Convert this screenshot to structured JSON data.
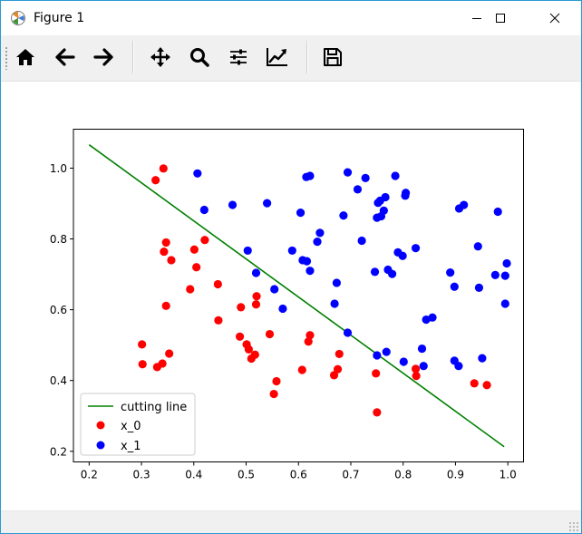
{
  "window": {
    "title": "Figure 1"
  },
  "toolbar": {
    "buttons": [
      {
        "name": "home-icon"
      },
      {
        "name": "back-arrow-icon"
      },
      {
        "name": "forward-arrow-icon"
      },
      {
        "name": "pan-icon"
      },
      {
        "name": "zoom-icon"
      },
      {
        "name": "configure-subplots-icon"
      },
      {
        "name": "edit-axis-icon"
      },
      {
        "name": "save-icon"
      }
    ]
  },
  "colors": {
    "class0": "#ff0000",
    "class1": "#0000ff",
    "line": "#008000"
  },
  "chart_data": {
    "type": "scatter",
    "xlim": [
      0.17,
      1.03
    ],
    "ylim": [
      0.17,
      1.11
    ],
    "xticks": [
      "0.2",
      "0.3",
      "0.4",
      "0.5",
      "0.6",
      "0.7",
      "0.8",
      "0.9",
      "1.0"
    ],
    "yticks": [
      "0.2",
      "0.4",
      "0.6",
      "0.8",
      "1.0"
    ],
    "legend_position": "lower-left",
    "line": {
      "name": "cutting line",
      "x": [
        0.2,
        0.993
      ],
      "y": [
        1.066,
        0.213
      ]
    },
    "series": [
      {
        "name": "x_0",
        "points": [
          [
            0.342,
            0.999
          ],
          [
            0.327,
            0.966
          ],
          [
            0.347,
            0.79
          ],
          [
            0.343,
            0.764
          ],
          [
            0.357,
            0.74
          ],
          [
            0.421,
            0.797
          ],
          [
            0.401,
            0.77
          ],
          [
            0.405,
            0.72
          ],
          [
            0.393,
            0.658
          ],
          [
            0.446,
            0.672
          ],
          [
            0.347,
            0.611
          ],
          [
            0.447,
            0.57
          ],
          [
            0.49,
            0.607
          ],
          [
            0.52,
            0.638
          ],
          [
            0.519,
            0.615
          ],
          [
            0.301,
            0.502
          ],
          [
            0.302,
            0.446
          ],
          [
            0.33,
            0.438
          ],
          [
            0.34,
            0.448
          ],
          [
            0.353,
            0.476
          ],
          [
            0.488,
            0.524
          ],
          [
            0.501,
            0.502
          ],
          [
            0.505,
            0.488
          ],
          [
            0.517,
            0.473
          ],
          [
            0.51,
            0.462
          ],
          [
            0.545,
            0.531
          ],
          [
            0.622,
            0.528
          ],
          [
            0.619,
            0.51
          ],
          [
            0.678,
            0.475
          ],
          [
            0.607,
            0.43
          ],
          [
            0.675,
            0.432
          ],
          [
            0.668,
            0.415
          ],
          [
            0.558,
            0.398
          ],
          [
            0.553,
            0.362
          ],
          [
            0.748,
            0.42
          ],
          [
            0.824,
            0.433
          ],
          [
            0.825,
            0.413
          ],
          [
            0.936,
            0.392
          ],
          [
            0.96,
            0.387
          ],
          [
            0.75,
            0.31
          ]
        ]
      },
      {
        "name": "x_1",
        "points": [
          [
            0.407,
            0.985
          ],
          [
            0.615,
            0.975
          ],
          [
            0.622,
            0.978
          ],
          [
            0.694,
            0.988
          ],
          [
            0.728,
            0.972
          ],
          [
            0.785,
            0.978
          ],
          [
            0.805,
            0.93
          ],
          [
            0.804,
            0.922
          ],
          [
            0.713,
            0.94
          ],
          [
            0.756,
            0.908
          ],
          [
            0.752,
            0.902
          ],
          [
            0.766,
            0.918
          ],
          [
            0.42,
            0.882
          ],
          [
            0.474,
            0.896
          ],
          [
            0.54,
            0.901
          ],
          [
            0.604,
            0.874
          ],
          [
            0.686,
            0.866
          ],
          [
            0.75,
            0.86
          ],
          [
            0.758,
            0.864
          ],
          [
            0.763,
            0.88
          ],
          [
            0.916,
            0.896
          ],
          [
            0.907,
            0.886
          ],
          [
            0.981,
            0.877
          ],
          [
            0.641,
            0.817
          ],
          [
            0.636,
            0.792
          ],
          [
            0.721,
            0.795
          ],
          [
            0.824,
            0.774
          ],
          [
            0.79,
            0.762
          ],
          [
            0.799,
            0.752
          ],
          [
            0.503,
            0.767
          ],
          [
            0.588,
            0.767
          ],
          [
            0.608,
            0.74
          ],
          [
            0.616,
            0.737
          ],
          [
            0.622,
            0.71
          ],
          [
            0.943,
            0.779
          ],
          [
            0.998,
            0.731
          ],
          [
            0.771,
            0.713
          ],
          [
            0.779,
            0.701
          ],
          [
            0.746,
            0.707
          ],
          [
            0.519,
            0.704
          ],
          [
            0.89,
            0.705
          ],
          [
            0.976,
            0.698
          ],
          [
            0.995,
            0.696
          ],
          [
            0.554,
            0.658
          ],
          [
            0.673,
            0.676
          ],
          [
            0.898,
            0.665
          ],
          [
            0.945,
            0.662
          ],
          [
            0.57,
            0.603
          ],
          [
            0.669,
            0.617
          ],
          [
            0.995,
            0.617
          ],
          [
            0.844,
            0.572
          ],
          [
            0.856,
            0.578
          ],
          [
            0.694,
            0.535
          ],
          [
            0.768,
            0.481
          ],
          [
            0.75,
            0.471
          ],
          [
            0.836,
            0.49
          ],
          [
            0.801,
            0.453
          ],
          [
            0.898,
            0.456
          ],
          [
            0.906,
            0.441
          ],
          [
            0.839,
            0.441
          ],
          [
            0.951,
            0.463
          ]
        ]
      }
    ]
  }
}
